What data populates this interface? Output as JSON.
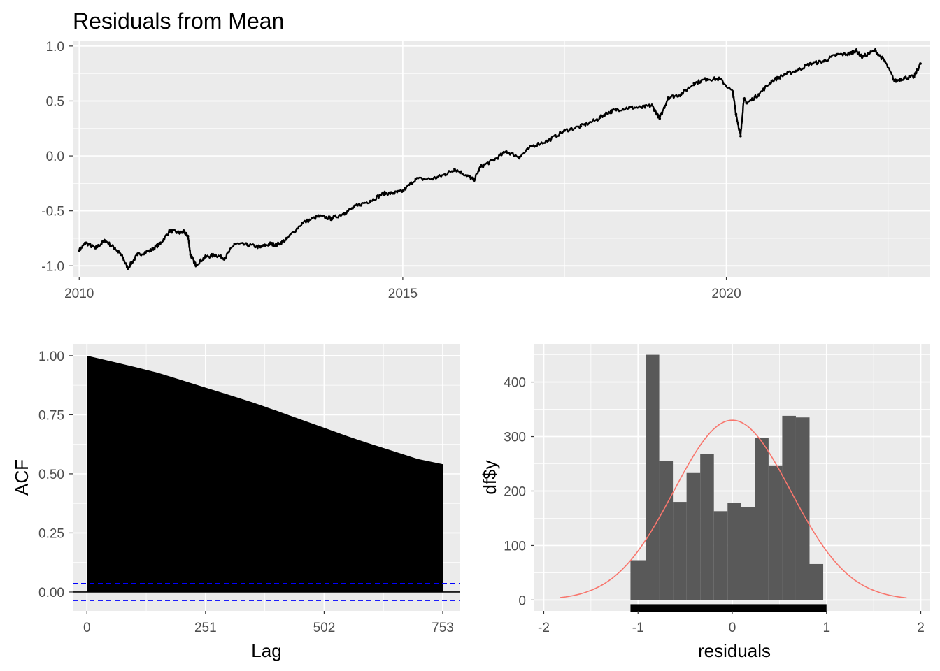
{
  "chart_data": [
    {
      "type": "line",
      "title": "Residuals from Mean",
      "xlabel": "",
      "ylabel": "",
      "xlim": [
        2009.9,
        2023.15
      ],
      "ylim": [
        -1.1,
        1.05
      ],
      "x_ticks": [
        2010,
        2015,
        2020
      ],
      "x_tick_labels": [
        "2010",
        "2015",
        "2020"
      ],
      "y_ticks": [
        -1.0,
        -0.5,
        0.0,
        0.5,
        1.0
      ],
      "y_tick_labels": [
        "-1.0",
        "-0.5",
        "0.0",
        "0.5",
        "1.0"
      ],
      "grid": true,
      "series": [
        {
          "x": [
            2010.0,
            2010.1,
            2010.25,
            2010.4,
            2010.55,
            2010.65,
            2010.75,
            2010.9,
            2011.1,
            2011.25,
            2011.4,
            2011.55,
            2011.62,
            2011.68,
            2011.72,
            2011.8,
            2011.95,
            2012.1,
            2012.25,
            2012.4,
            2012.6,
            2012.8,
            2012.95,
            2013.05,
            2013.2,
            2013.45,
            2013.7,
            2013.9,
            2014.1,
            2014.3,
            2014.5,
            2014.7,
            2014.85,
            2015.0,
            2015.2,
            2015.45,
            2015.65,
            2015.8,
            2016.0,
            2016.1,
            2016.2,
            2016.4,
            2016.6,
            2016.8,
            2017.0,
            2017.25,
            2017.5,
            2017.75,
            2018.0,
            2018.15,
            2018.3,
            2018.5,
            2018.7,
            2018.85,
            2018.97,
            2019.1,
            2019.3,
            2019.5,
            2019.7,
            2019.9,
            2020.1,
            2020.15,
            2020.22,
            2020.27,
            2020.32,
            2020.5,
            2020.7,
            2020.9,
            2021.1,
            2021.3,
            2021.5,
            2021.7,
            2021.9,
            2022.0,
            2022.1,
            2022.3,
            2022.45,
            2022.6,
            2022.75,
            2022.9,
            2023.0
          ],
          "y": [
            -0.86,
            -0.79,
            -0.84,
            -0.77,
            -0.84,
            -0.9,
            -1.02,
            -0.9,
            -0.86,
            -0.8,
            -0.68,
            -0.7,
            -0.69,
            -0.73,
            -0.9,
            -0.99,
            -0.92,
            -0.9,
            -0.93,
            -0.8,
            -0.81,
            -0.83,
            -0.8,
            -0.81,
            -0.76,
            -0.61,
            -0.55,
            -0.57,
            -0.52,
            -0.45,
            -0.41,
            -0.34,
            -0.34,
            -0.32,
            -0.21,
            -0.21,
            -0.17,
            -0.12,
            -0.18,
            -0.22,
            -0.1,
            -0.04,
            0.04,
            -0.01,
            0.09,
            0.14,
            0.23,
            0.27,
            0.33,
            0.39,
            0.42,
            0.44,
            0.44,
            0.46,
            0.34,
            0.53,
            0.56,
            0.66,
            0.7,
            0.7,
            0.58,
            0.38,
            0.18,
            0.52,
            0.48,
            0.56,
            0.68,
            0.74,
            0.78,
            0.84,
            0.86,
            0.92,
            0.93,
            0.96,
            0.9,
            0.96,
            0.86,
            0.68,
            0.71,
            0.72,
            0.84
          ]
        }
      ]
    },
    {
      "type": "area",
      "title": "",
      "xlabel": "Lag",
      "ylabel": "ACF",
      "xlim": [
        -30,
        790
      ],
      "ylim": [
        -0.08,
        1.05
      ],
      "x_ticks": [
        0,
        251,
        502,
        753
      ],
      "x_tick_labels": [
        "0",
        "251",
        "502",
        "753"
      ],
      "y_ticks": [
        0.0,
        0.25,
        0.5,
        0.75,
        1.0
      ],
      "y_tick_labels": [
        "0.00",
        "0.25",
        "0.50",
        "0.75",
        "1.00"
      ],
      "grid": true,
      "series": [
        {
          "x": [
            0,
            50,
            100,
            150,
            200,
            251,
            300,
            350,
            400,
            450,
            502,
            550,
            600,
            650,
            700,
            753
          ],
          "y": [
            1.0,
            0.975,
            0.951,
            0.926,
            0.896,
            0.863,
            0.833,
            0.8,
            0.767,
            0.732,
            0.695,
            0.662,
            0.628,
            0.595,
            0.562,
            0.54
          ]
        }
      ],
      "acf": {
        "x": [
          0,
          50,
          100,
          150,
          200,
          251,
          300,
          350,
          400,
          450,
          502,
          550,
          600,
          650,
          700,
          753
        ],
        "y": [
          1.0,
          0.977,
          0.953,
          0.928,
          0.897,
          0.865,
          0.835,
          0.803,
          0.768,
          0.732,
          0.695,
          0.66,
          0.627,
          0.595,
          0.563,
          0.541
        ]
      },
      "confidence_bounds": [
        0.036,
        -0.036
      ],
      "bound_color": "#0000FF",
      "fill_color": "#000000"
    },
    {
      "type": "bar",
      "title": "",
      "xlabel": "residuals",
      "ylabel": "df$y",
      "xlim": [
        -2.1,
        2.1
      ],
      "ylim": [
        -20,
        470
      ],
      "x_ticks": [
        -2,
        -1,
        0,
        1,
        2
      ],
      "x_tick_labels": [
        "-2",
        "-1",
        "0",
        "1",
        "2"
      ],
      "y_ticks": [
        0,
        100,
        200,
        300,
        400
      ],
      "y_tick_labels": [
        "0",
        "100",
        "200",
        "300",
        "400"
      ],
      "grid": true,
      "bin_edges": [
        -1.08,
        -0.92,
        -0.775,
        -0.63,
        -0.485,
        -0.34,
        -0.195,
        -0.05,
        0.095,
        0.24,
        0.385,
        0.53,
        0.675,
        0.82,
        0.965,
        1.11
      ],
      "values": [
        73,
        450,
        255,
        180,
        233,
        268,
        163,
        178,
        171,
        297,
        247,
        338,
        335,
        66,
        0
      ],
      "bar_color": "#595959",
      "normal_curve": {
        "mean": 0.0,
        "sd": 0.62,
        "peak": 330,
        "x_range": [
          -1.83,
          1.85
        ],
        "color": "#F8766D"
      },
      "rug_range": [
        -1.08,
        1.0
      ]
    }
  ]
}
